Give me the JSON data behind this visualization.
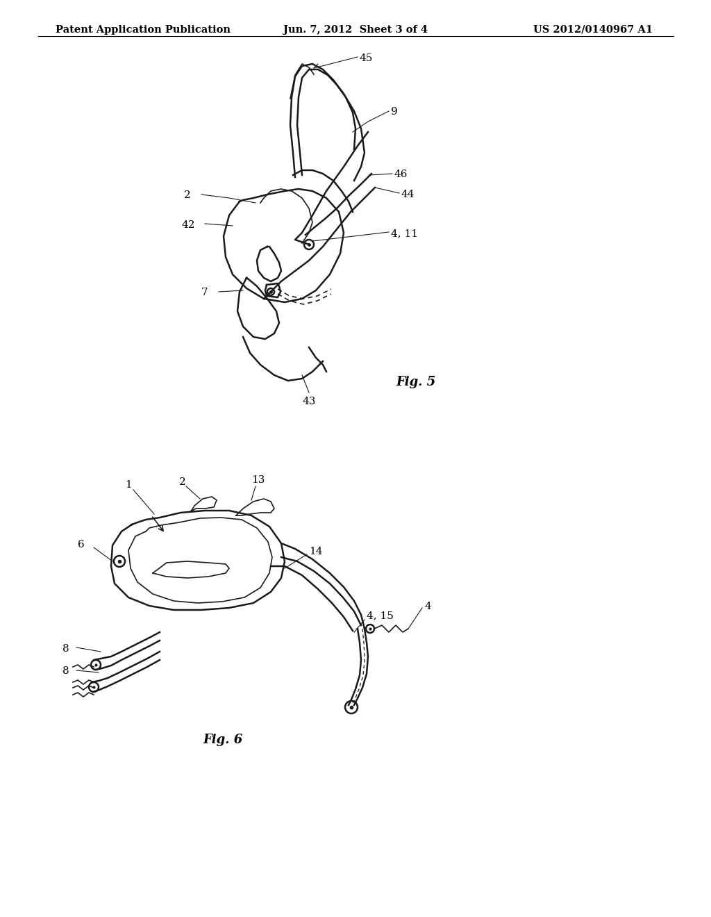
{
  "background_color": "#ffffff",
  "header_left": "Patent Application Publication",
  "header_center": "Jun. 7, 2012  Sheet 3 of 4",
  "header_right": "US 2012/0140967 A1",
  "fig5_label": "Fig. 5",
  "fig6_label": "Fig. 6",
  "line_color": "#1a1a1a",
  "text_color": "#000000",
  "header_fontsize": 10.5,
  "label_fontsize": 11,
  "figlabel_fontsize": 13
}
